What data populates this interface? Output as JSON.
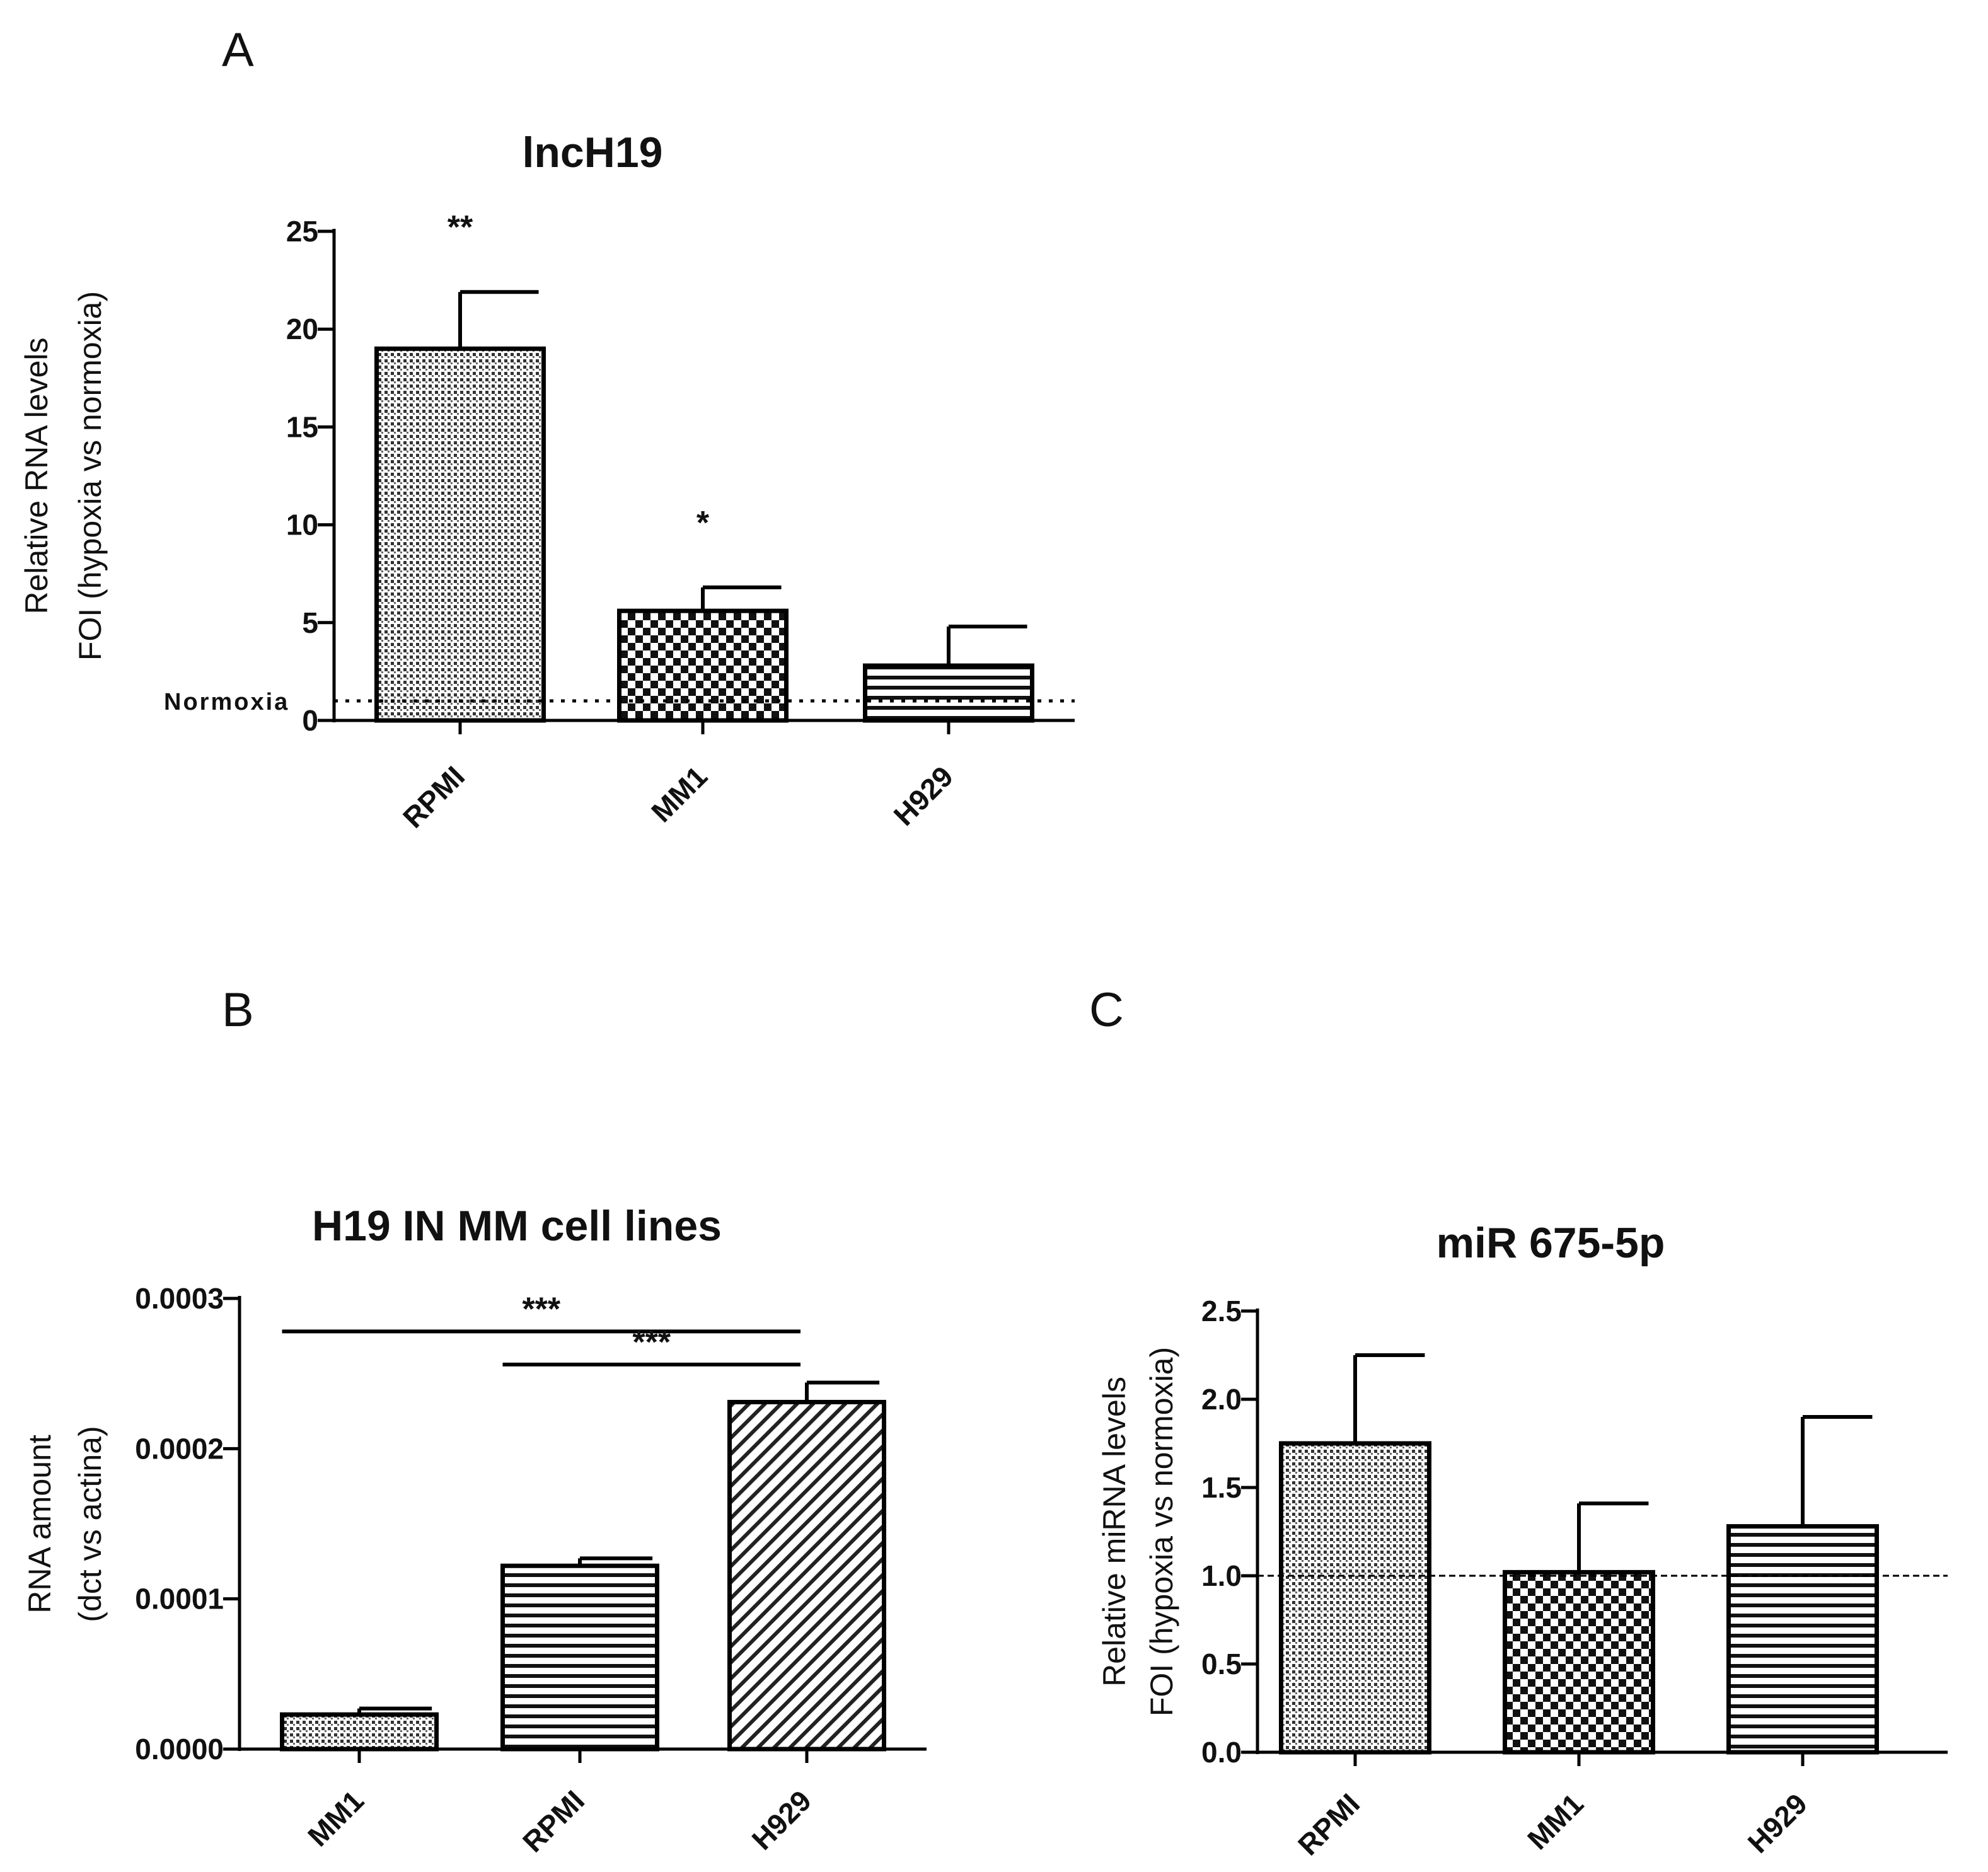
{
  "chart_data": [
    {
      "panel": "A",
      "type": "bar",
      "title": "lncH19",
      "ylabel_lines": [
        "Relative RNA levels",
        "FOI (hypoxia vs normoxia)"
      ],
      "xlabel": "",
      "categories": [
        "RPMI",
        "MM1",
        "H929"
      ],
      "values": [
        19,
        5.6,
        2.8
      ],
      "errors": [
        2.9,
        1.2,
        2.0
      ],
      "patterns": [
        "dots",
        "checker",
        "hlines"
      ],
      "significance": [
        "**",
        "*",
        ""
      ],
      "ylim": [
        0,
        25
      ],
      "yticks": [
        {
          "v": 0,
          "label": "0"
        },
        {
          "v": 5,
          "label": "5"
        },
        {
          "v": 10,
          "label": "10"
        },
        {
          "v": 15,
          "label": "15"
        },
        {
          "v": 20,
          "label": "20"
        },
        {
          "v": 25,
          "label": "25"
        }
      ],
      "reference_line": {
        "value": 1,
        "label": "Normoxia",
        "style": "dotted"
      }
    },
    {
      "panel": "B",
      "type": "bar",
      "title": "H19 IN MM cell lines",
      "ylabel_lines": [
        "RNA amount",
        "(dct vs actina)"
      ],
      "xlabel": "",
      "categories": [
        "MM1",
        "RPMI",
        "H929"
      ],
      "values": [
        2.3e-05,
        0.000122,
        0.000231
      ],
      "errors": [
        4e-06,
        5e-06,
        1.3e-05
      ],
      "patterns": [
        "dots",
        "hlines",
        "diag"
      ],
      "ylim": [
        0,
        0.0003
      ],
      "yticks": [
        {
          "v": 0,
          "label": "0.0000"
        },
        {
          "v": 0.0001,
          "label": "0.0001"
        },
        {
          "v": 0.0002,
          "label": "0.0002"
        },
        {
          "v": 0.0003,
          "label": "0.0003"
        }
      ],
      "comparisons": [
        {
          "from": 0,
          "to": 2,
          "y": 0.000278,
          "label": "***"
        },
        {
          "from": 1,
          "to": 2,
          "y": 0.000256,
          "label": "***"
        }
      ]
    },
    {
      "panel": "C",
      "type": "bar",
      "title": "miR 675-5p",
      "ylabel_lines": [
        "Relative miRNA levels",
        "FOI (hypoxia vs normoxia)"
      ],
      "xlabel": "",
      "categories": [
        "RPMI",
        "MM1",
        "H929"
      ],
      "values": [
        1.75,
        1.02,
        1.28
      ],
      "errors": [
        0.5,
        0.39,
        0.62
      ],
      "patterns": [
        "dots",
        "checker",
        "hlines"
      ],
      "ylim": [
        0,
        2.5
      ],
      "yticks": [
        {
          "v": 0,
          "label": "0.0"
        },
        {
          "v": 0.5,
          "label": "0.5"
        },
        {
          "v": 1,
          "label": "1.0"
        },
        {
          "v": 1.5,
          "label": "1.5"
        },
        {
          "v": 2,
          "label": "2.0"
        },
        {
          "v": 2.5,
          "label": "2.5"
        }
      ],
      "reference_line": {
        "value": 1,
        "label": "",
        "style": "dashed"
      }
    }
  ]
}
